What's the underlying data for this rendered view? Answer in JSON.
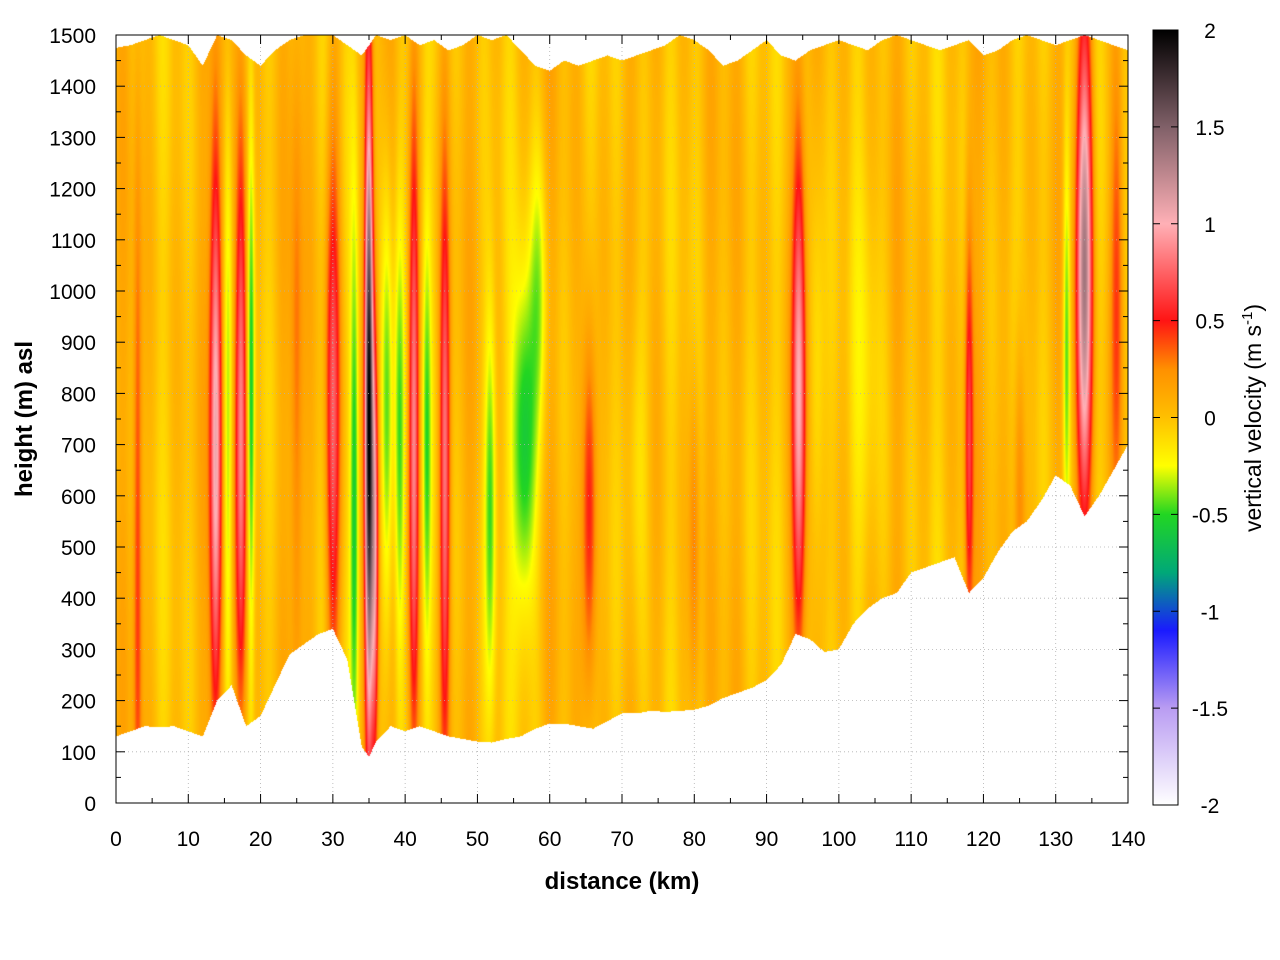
{
  "chart_data": {
    "type": "heatmap",
    "xlabel": "distance (km)",
    "ylabel": "height (m) asl",
    "colorbar_label": "vertical velocity (m s",
    "colorbar_label_sup": "-1",
    "colorbar_label_end": ")",
    "xlim": [
      0,
      140
    ],
    "ylim": [
      0,
      1500
    ],
    "clim": [
      -2,
      2
    ],
    "x_ticks": [
      0,
      10,
      20,
      30,
      40,
      50,
      60,
      70,
      80,
      90,
      100,
      110,
      120,
      130,
      140
    ],
    "y_ticks": [
      0,
      100,
      200,
      300,
      400,
      500,
      600,
      700,
      800,
      900,
      1000,
      1100,
      1200,
      1300,
      1400,
      1500
    ],
    "colorbar_ticks": [
      "2",
      "1.5",
      "1",
      "0.5",
      "0",
      "-0.5",
      "-1",
      "-1.5",
      "-2"
    ],
    "grid": true,
    "colormap": [
      {
        "v": -2.0,
        "color": "#ffffff"
      },
      {
        "v": -1.5,
        "color": "#b99cf2"
      },
      {
        "v": -1.1,
        "color": "#1a1aff"
      },
      {
        "v": -0.8,
        "color": "#00a878"
      },
      {
        "v": -0.5,
        "color": "#22d622"
      },
      {
        "v": -0.25,
        "color": "#ffff00"
      },
      {
        "v": 0.0,
        "color": "#ffc000"
      },
      {
        "v": 0.25,
        "color": "#ff9000"
      },
      {
        "v": 0.5,
        "color": "#ff1414"
      },
      {
        "v": 1.0,
        "color": "#ffb0b6"
      },
      {
        "v": 1.5,
        "color": "#806068"
      },
      {
        "v": 2.0,
        "color": "#000000"
      }
    ],
    "terrain_bottom": [
      [
        0,
        130
      ],
      [
        2,
        140
      ],
      [
        4,
        150
      ],
      [
        6,
        148
      ],
      [
        8,
        150
      ],
      [
        10,
        140
      ],
      [
        12,
        130
      ],
      [
        14,
        200
      ],
      [
        16,
        230
      ],
      [
        18,
        150
      ],
      [
        20,
        170
      ],
      [
        22,
        230
      ],
      [
        24,
        290
      ],
      [
        26,
        310
      ],
      [
        28,
        330
      ],
      [
        30,
        340
      ],
      [
        32,
        280
      ],
      [
        34,
        110
      ],
      [
        35,
        90
      ],
      [
        36,
        120
      ],
      [
        38,
        150
      ],
      [
        40,
        140
      ],
      [
        42,
        150
      ],
      [
        44,
        140
      ],
      [
        46,
        130
      ],
      [
        48,
        125
      ],
      [
        50,
        120
      ],
      [
        52,
        118
      ],
      [
        54,
        125
      ],
      [
        56,
        130
      ],
      [
        58,
        145
      ],
      [
        60,
        155
      ],
      [
        62,
        155
      ],
      [
        64,
        150
      ],
      [
        66,
        145
      ],
      [
        68,
        160
      ],
      [
        70,
        175
      ],
      [
        72,
        175
      ],
      [
        74,
        180
      ],
      [
        76,
        178
      ],
      [
        78,
        180
      ],
      [
        80,
        182
      ],
      [
        82,
        190
      ],
      [
        84,
        205
      ],
      [
        86,
        215
      ],
      [
        88,
        225
      ],
      [
        90,
        240
      ],
      [
        92,
        270
      ],
      [
        94,
        330
      ],
      [
        96,
        320
      ],
      [
        98,
        295
      ],
      [
        100,
        300
      ],
      [
        102,
        350
      ],
      [
        104,
        380
      ],
      [
        106,
        400
      ],
      [
        108,
        410
      ],
      [
        110,
        450
      ],
      [
        112,
        460
      ],
      [
        114,
        470
      ],
      [
        116,
        480
      ],
      [
        118,
        410
      ],
      [
        120,
        440
      ],
      [
        122,
        490
      ],
      [
        124,
        530
      ],
      [
        126,
        550
      ],
      [
        128,
        590
      ],
      [
        130,
        640
      ],
      [
        132,
        620
      ],
      [
        134,
        560
      ],
      [
        136,
        600
      ],
      [
        138,
        650
      ],
      [
        140,
        700
      ]
    ],
    "terrain_top": [
      [
        0,
        1475
      ],
      [
        2,
        1480
      ],
      [
        4,
        1490
      ],
      [
        6,
        1500
      ],
      [
        8,
        1490
      ],
      [
        10,
        1480
      ],
      [
        12,
        1440
      ],
      [
        14,
        1500
      ],
      [
        16,
        1490
      ],
      [
        18,
        1460
      ],
      [
        20,
        1440
      ],
      [
        22,
        1470
      ],
      [
        24,
        1490
      ],
      [
        26,
        1500
      ],
      [
        28,
        1500
      ],
      [
        30,
        1500
      ],
      [
        32,
        1480
      ],
      [
        34,
        1460
      ],
      [
        36,
        1500
      ],
      [
        38,
        1490
      ],
      [
        40,
        1500
      ],
      [
        42,
        1480
      ],
      [
        44,
        1490
      ],
      [
        46,
        1470
      ],
      [
        48,
        1480
      ],
      [
        50,
        1500
      ],
      [
        52,
        1490
      ],
      [
        54,
        1500
      ],
      [
        56,
        1470
      ],
      [
        58,
        1440
      ],
      [
        60,
        1430
      ],
      [
        62,
        1450
      ],
      [
        64,
        1440
      ],
      [
        66,
        1450
      ],
      [
        68,
        1460
      ],
      [
        70,
        1450
      ],
      [
        72,
        1460
      ],
      [
        74,
        1470
      ],
      [
        76,
        1480
      ],
      [
        78,
        1500
      ],
      [
        80,
        1490
      ],
      [
        82,
        1470
      ],
      [
        84,
        1440
      ],
      [
        86,
        1450
      ],
      [
        88,
        1470
      ],
      [
        90,
        1490
      ],
      [
        92,
        1460
      ],
      [
        94,
        1450
      ],
      [
        96,
        1470
      ],
      [
        98,
        1480
      ],
      [
        100,
        1490
      ],
      [
        102,
        1480
      ],
      [
        104,
        1470
      ],
      [
        106,
        1490
      ],
      [
        108,
        1500
      ],
      [
        110,
        1490
      ],
      [
        112,
        1480
      ],
      [
        114,
        1470
      ],
      [
        116,
        1480
      ],
      [
        118,
        1490
      ],
      [
        120,
        1460
      ],
      [
        122,
        1470
      ],
      [
        124,
        1490
      ],
      [
        126,
        1500
      ],
      [
        128,
        1490
      ],
      [
        130,
        1480
      ],
      [
        132,
        1490
      ],
      [
        134,
        1500
      ],
      [
        136,
        1490
      ],
      [
        138,
        1480
      ],
      [
        140,
        1470
      ]
    ],
    "features": [
      {
        "x": 3,
        "amp": 0.45,
        "w": 0.6,
        "yc": 480,
        "yw": 700
      },
      {
        "x": 13.8,
        "amp": 1.05,
        "w": 0.8,
        "yc": 720,
        "yw": 540
      },
      {
        "x": 15.5,
        "amp": -0.45,
        "w": 0.6,
        "yc": 700,
        "yw": 600
      },
      {
        "x": 17.3,
        "amp": 0.95,
        "w": 0.8,
        "yc": 750,
        "yw": 540
      },
      {
        "x": 18.7,
        "amp": -0.55,
        "w": 0.5,
        "yc": 800,
        "yw": 500
      },
      {
        "x": 25,
        "amp": 0.3,
        "w": 0.8,
        "yc": 800,
        "yw": 600
      },
      {
        "x": 30,
        "amp": 0.7,
        "w": 1.0,
        "yc": 750,
        "yw": 500
      },
      {
        "x": 33,
        "amp": -0.55,
        "w": 0.6,
        "yc": 600,
        "yw": 500
      },
      {
        "x": 35,
        "amp": 1.9,
        "w": 0.55,
        "yc": 760,
        "yw": 560
      },
      {
        "x": 35.8,
        "amp": 0.9,
        "w": 0.5,
        "yc": 500,
        "yw": 400
      },
      {
        "x": 37.5,
        "amp": -0.55,
        "w": 0.8,
        "yc": 750,
        "yw": 400
      },
      {
        "x": 39.2,
        "amp": -0.45,
        "w": 0.7,
        "yc": 700,
        "yw": 400
      },
      {
        "x": 41.2,
        "amp": 0.85,
        "w": 0.7,
        "yc": 720,
        "yw": 520
      },
      {
        "x": 43,
        "amp": -0.4,
        "w": 0.6,
        "yc": 700,
        "yw": 400
      },
      {
        "x": 45.5,
        "amp": 0.75,
        "w": 0.7,
        "yc": 650,
        "yw": 500
      },
      {
        "x": 51.8,
        "amp": -0.5,
        "w": 0.8,
        "yc": 600,
        "yw": 350
      },
      {
        "x": 56.5,
        "amp": -0.65,
        "w": 1.6,
        "yc": 700,
        "yw": 300
      },
      {
        "x": 58.5,
        "amp": -0.3,
        "w": 1.2,
        "yc": 1000,
        "yw": 250
      },
      {
        "x": 65.5,
        "amp": 0.6,
        "w": 1.0,
        "yc": 580,
        "yw": 320
      },
      {
        "x": 72,
        "amp": -0.2,
        "w": 1.5,
        "yc": 700,
        "yw": 300
      },
      {
        "x": 80,
        "amp": 0.3,
        "w": 0.7,
        "yc": 500,
        "yw": 300
      },
      {
        "x": 94.5,
        "amp": 0.95,
        "w": 0.9,
        "yc": 800,
        "yw": 450
      },
      {
        "x": 97,
        "amp": -0.25,
        "w": 1.0,
        "yc": 800,
        "yw": 400
      },
      {
        "x": 104,
        "amp": -0.15,
        "w": 2.0,
        "yc": 900,
        "yw": 400
      },
      {
        "x": 118,
        "amp": 0.6,
        "w": 0.6,
        "yc": 720,
        "yw": 380
      },
      {
        "x": 125,
        "amp": 0.35,
        "w": 0.8,
        "yc": 600,
        "yw": 300
      },
      {
        "x": 131.5,
        "amp": -0.5,
        "w": 0.5,
        "yc": 900,
        "yw": 350
      },
      {
        "x": 134,
        "amp": 1.25,
        "w": 1.1,
        "yc": 1050,
        "yw": 420
      },
      {
        "x": 138.5,
        "amp": 0.45,
        "w": 0.9,
        "yc": 1000,
        "yw": 450
      }
    ]
  }
}
